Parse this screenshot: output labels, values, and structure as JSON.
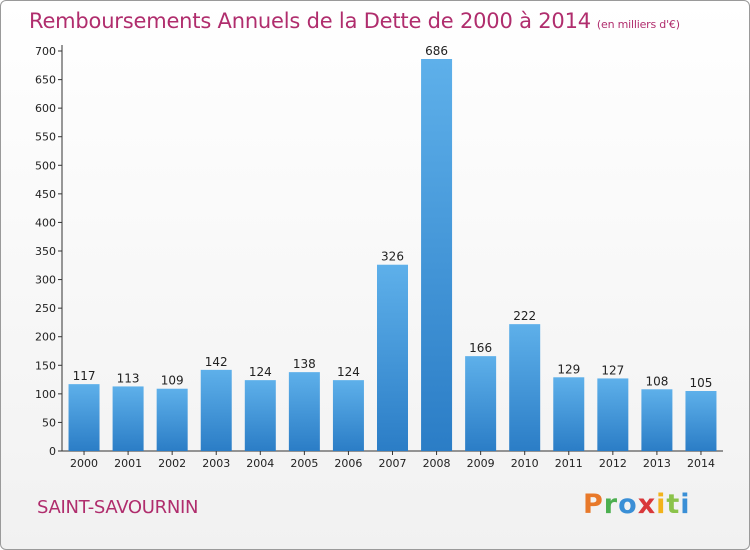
{
  "title": "Remboursements Annuels de la Dette de 2000 à 2014",
  "title_unit": "(en milliers d'€)",
  "commune": "SAINT-SAVOURNIN",
  "logo": {
    "letters": [
      "P",
      "r",
      "o",
      "x",
      "i",
      "t",
      "i"
    ]
  },
  "colors": {
    "accent": "#b02d6d",
    "bar_top": "#5eb0ea",
    "bar_bottom": "#2b7dc6"
  },
  "chart_data": {
    "type": "bar",
    "title": "Remboursements Annuels de la Dette de 2000 à 2014",
    "categories": [
      "2000",
      "2001",
      "2002",
      "2003",
      "2004",
      "2005",
      "2006",
      "2007",
      "2008",
      "2009",
      "2010",
      "2011",
      "2012",
      "2013",
      "2014"
    ],
    "values": [
      117,
      113,
      109,
      142,
      124,
      138,
      124,
      326,
      686,
      166,
      222,
      129,
      127,
      108,
      105
    ],
    "ylim": [
      0,
      700
    ],
    "yticks": [
      0,
      50,
      100,
      150,
      200,
      250,
      300,
      350,
      400,
      450,
      500,
      550,
      600,
      650,
      700
    ],
    "grid": false,
    "legend": "none"
  }
}
